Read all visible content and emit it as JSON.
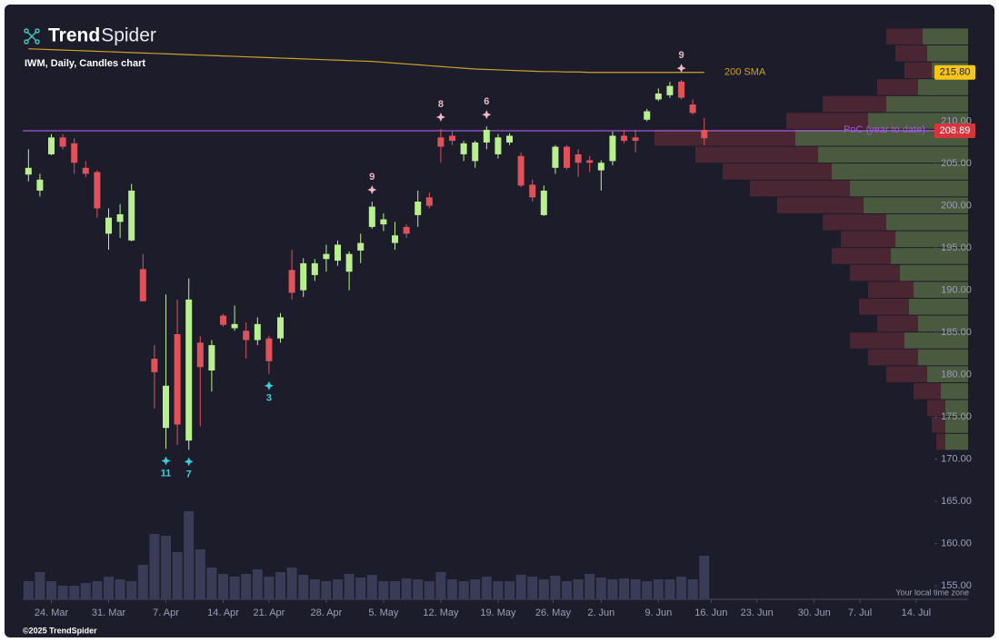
{
  "brand": [
    "Trend",
    "Spider"
  ],
  "chart_data": {
    "type": "candlestick",
    "subtitle": "IWM, Daily, Candles chart",
    "footer": "©2025 TrendSpider",
    "timezone_note": "Your local time zone",
    "xlim": [
      -0.5,
      79.1
    ],
    "ylim": [
      153.4,
      223.3
    ],
    "xticks": [
      {
        "value": 2,
        "label": "24. Mar"
      },
      {
        "value": 7,
        "label": "31. Mar"
      },
      {
        "value": 12,
        "label": "7. Apr"
      },
      {
        "value": 17,
        "label": "14. Apr"
      },
      {
        "value": 21,
        "label": "21. Apr"
      },
      {
        "value": 26,
        "label": "28. Apr"
      },
      {
        "value": 31,
        "label": "5. May"
      },
      {
        "value": 36,
        "label": "12. May"
      },
      {
        "value": 41,
        "label": "19. May"
      },
      {
        "value": 45.8,
        "label": "26. May"
      },
      {
        "value": 50,
        "label": "2. Jun"
      },
      {
        "value": 55,
        "label": "9. Jun"
      },
      {
        "value": 59.6,
        "label": "16. Jun"
      },
      {
        "value": 63.6,
        "label": "23. Jun"
      },
      {
        "value": 68.6,
        "label": "30. Jun"
      },
      {
        "value": 72.6,
        "label": "7. Jul"
      },
      {
        "value": 77.5,
        "label": "14. Jul"
      }
    ],
    "yticks": [
      {
        "value": 155,
        "label": "155.00"
      },
      {
        "value": 160,
        "label": "160.00"
      },
      {
        "value": 165,
        "label": "165.00"
      },
      {
        "value": 170,
        "label": "170.00"
      },
      {
        "value": 175,
        "label": "175.00"
      },
      {
        "value": 180,
        "label": "180.00"
      },
      {
        "value": 185,
        "label": "185.00"
      },
      {
        "value": 190,
        "label": "190.00"
      },
      {
        "value": 195,
        "label": "195.00"
      },
      {
        "value": 200,
        "label": "200.00"
      },
      {
        "value": 205,
        "label": "205.00"
      },
      {
        "value": 210,
        "label": "210.00"
      }
    ],
    "up_color": "#b8ef8f",
    "down_color": "#e0525a",
    "open": [
      203.7,
      201.8,
      206.1,
      208.1,
      207.4,
      204.5,
      204.0,
      196.7,
      198.1,
      195.9,
      192.5,
      181.9,
      173.7,
      184.8,
      172.2,
      183.8,
      180.5,
      187.0,
      185.5,
      185.2,
      184.1,
      184.3,
      184.3,
      192.4,
      190.0,
      191.8,
      193.7,
      193.5,
      192.2,
      194.7,
      197.5,
      197.8,
      195.6,
      197.5,
      198.9,
      201.0,
      208.1,
      208.3,
      206.1,
      205.3,
      207.5,
      206.1,
      207.5,
      205.9,
      202.5,
      198.9,
      204.5,
      207.0,
      206.1,
      205.4,
      204.2,
      205.3,
      208.3,
      208.1,
      210.2,
      212.6,
      213.1,
      214.7,
      212.0,
      209.0
    ],
    "high": [
      206.7,
      203.8,
      208.5,
      208.5,
      208.0,
      205.3,
      204.2,
      199.7,
      200.2,
      202.6,
      194.3,
      183.5,
      189.5,
      188.9,
      191.4,
      184.6,
      184.1,
      187.2,
      188.2,
      186.2,
      186.8,
      184.6,
      187.3,
      194.8,
      193.8,
      193.7,
      195.4,
      195.9,
      194.6,
      196.7,
      200.5,
      199.1,
      198.1,
      197.8,
      201.8,
      201.6,
      209.1,
      208.8,
      207.7,
      207.7,
      209.4,
      208.5,
      208.6,
      206.3,
      203.1,
      202.4,
      207.2,
      207.2,
      206.7,
      205.9,
      205.4,
      208.8,
      209.0,
      209.0,
      211.5,
      213.9,
      214.7,
      214.9,
      212.6,
      210.4
    ],
    "low": [
      202.9,
      201.1,
      206.0,
      206.7,
      203.8,
      203.4,
      198.6,
      194.8,
      196.2,
      195.8,
      188.7,
      176.0,
      171.2,
      171.7,
      171.1,
      173.9,
      178.0,
      185.7,
      185.2,
      181.9,
      183.5,
      180.1,
      183.8,
      188.9,
      189.2,
      191.1,
      192.2,
      192.9,
      190.0,
      193.2,
      197.3,
      197.0,
      194.8,
      196.2,
      197.5,
      199.7,
      205.1,
      207.2,
      205.3,
      204.5,
      206.7,
      205.6,
      207.2,
      202.2,
      200.5,
      198.8,
      203.8,
      204.3,
      203.4,
      204.0,
      201.8,
      204.8,
      207.4,
      206.3,
      210.0,
      212.4,
      212.8,
      212.6,
      210.8,
      207.2
    ],
    "close": [
      204.5,
      203.1,
      208.1,
      207.0,
      205.1,
      203.8,
      199.7,
      198.6,
      199.0,
      201.8,
      188.7,
      180.3,
      178.7,
      174.1,
      188.9,
      180.9,
      183.5,
      185.9,
      186.0,
      184.1,
      186.0,
      181.6,
      186.8,
      189.7,
      193.2,
      193.2,
      194.3,
      195.4,
      194.3,
      195.6,
      199.9,
      198.4,
      196.5,
      196.7,
      200.5,
      200.0,
      207.0,
      207.7,
      207.4,
      207.5,
      209.0,
      208.1,
      208.3,
      202.4,
      201.0,
      201.8,
      207.0,
      204.5,
      205.1,
      205.1,
      205.1,
      208.3,
      207.7,
      207.7,
      211.2,
      213.3,
      214.2,
      212.8,
      211.0,
      208.0
    ],
    "volume": {
      "color": "#3a3b56",
      "vlim": [
        0,
        100
      ],
      "values": [
        20,
        30,
        20,
        15,
        15,
        18,
        20,
        25,
        22,
        20,
        38,
        72,
        70,
        52,
        97,
        55,
        35,
        28,
        25,
        28,
        33,
        25,
        30,
        35,
        27,
        22,
        20,
        22,
        28,
        24,
        27,
        20,
        20,
        23,
        22,
        20,
        30,
        22,
        20,
        22,
        25,
        20,
        20,
        27,
        25,
        22,
        26,
        20,
        22,
        28,
        24,
        22,
        23,
        22,
        20,
        22,
        22,
        25,
        22,
        48
      ]
    },
    "sma": {
      "name": "200 SMA",
      "color": "#c9a227",
      "last_label": "215.80",
      "values": [
        218.6,
        218.55,
        218.5,
        218.45,
        218.4,
        218.35,
        218.3,
        218.25,
        218.2,
        218.15,
        218.1,
        218.05,
        218.0,
        217.95,
        217.9,
        217.85,
        217.8,
        217.75,
        217.7,
        217.65,
        217.6,
        217.55,
        217.5,
        217.45,
        217.4,
        217.35,
        217.3,
        217.25,
        217.2,
        217.15,
        217.1,
        217.0,
        216.9,
        216.8,
        216.7,
        216.6,
        216.5,
        216.4,
        216.3,
        216.2,
        216.15,
        216.1,
        216.05,
        216.0,
        215.95,
        215.9,
        215.9,
        215.85,
        215.85,
        215.8,
        215.8,
        215.8,
        215.8,
        215.8,
        215.8,
        215.8,
        215.8,
        215.8,
        215.8,
        215.8
      ]
    },
    "poc": {
      "name": "PoC (year to date)",
      "value": 208.89,
      "label": "208.89",
      "color": "#a35ad6"
    },
    "profile": {
      "up_color": "#4a5a3e",
      "down_color": "#4a2532",
      "bins": [
        171,
        173,
        175,
        177,
        179,
        181,
        183,
        185,
        187,
        189,
        191,
        193,
        195,
        197,
        199,
        201,
        203,
        205,
        207,
        209,
        211,
        213,
        215,
        217,
        219,
        221
      ],
      "up": [
        25,
        25,
        25,
        30,
        45,
        55,
        70,
        55,
        65,
        60,
        75,
        85,
        80,
        90,
        115,
        130,
        150,
        165,
        190,
        110,
        90,
        55,
        40,
        45,
        50
      ],
      "down": [
        10,
        15,
        20,
        30,
        45,
        55,
        60,
        45,
        55,
        50,
        55,
        65,
        60,
        70,
        95,
        110,
        120,
        135,
        155,
        90,
        70,
        45,
        30,
        35,
        40
      ]
    },
    "counts": [
      {
        "index": 30,
        "label": "9",
        "side": "above"
      },
      {
        "index": 36,
        "label": "8",
        "side": "above"
      },
      {
        "index": 40,
        "label": "6",
        "side": "above"
      },
      {
        "index": 57,
        "label": "9",
        "side": "above"
      },
      {
        "index": 12,
        "label": "11",
        "side": "below"
      },
      {
        "index": 14,
        "label": "7",
        "side": "below"
      },
      {
        "index": 21,
        "label": "3",
        "side": "below"
      }
    ]
  }
}
